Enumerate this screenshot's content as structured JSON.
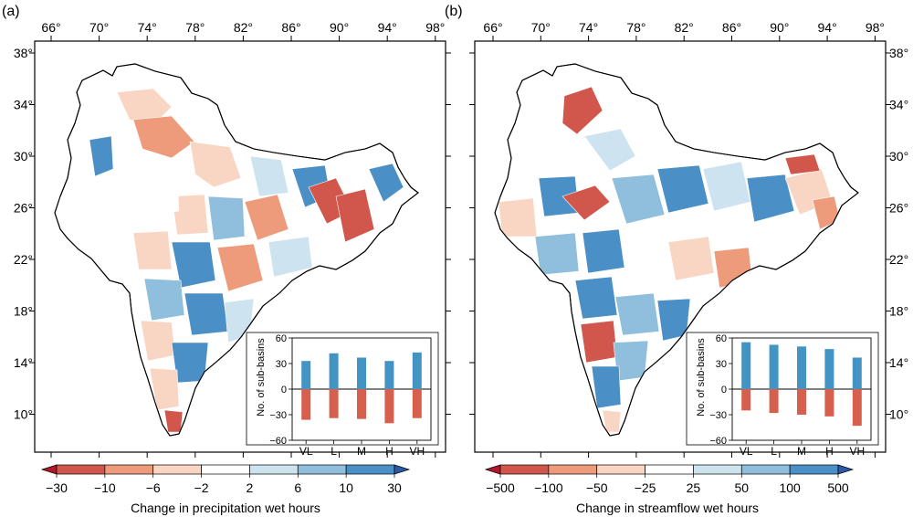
{
  "panels": [
    {
      "label": "(a)",
      "lon_ticks": [
        "66°",
        "70°",
        "74°",
        "78°",
        "82°",
        "86°",
        "90°",
        "94°",
        "98°"
      ],
      "lat_ticks": [
        "38°",
        "34°",
        "30°",
        "26°",
        "22°",
        "18°",
        "14°",
        "10°"
      ],
      "lat_side": "left",
      "colorbar": {
        "title": "Change in precipitation wet hours",
        "labels": [
          "−30",
          "−10",
          "−6",
          "−2",
          "2",
          "6",
          "10",
          "30"
        ],
        "colors": [
          "#d1564b",
          "#ee9b7b",
          "#f9d5c4",
          "#ffffff",
          "#cde3ef",
          "#8fbfdd",
          "#4a90c7"
        ],
        "extend_low": "#b2182b",
        "extend_high": "#2d5aa6"
      },
      "inset": {
        "ylabel": "No. of sub-basins",
        "yticks": [
          "60",
          "30",
          "0",
          "−30",
          "−60"
        ],
        "categories": [
          "VL",
          "L",
          "M",
          "H",
          "VH"
        ],
        "positive": [
          33,
          42,
          37,
          33,
          43
        ],
        "negative": [
          -36,
          -34,
          -35,
          -40,
          -34
        ],
        "pos_color": "#4393c3",
        "neg_color": "#d6604d"
      }
    },
    {
      "label": "(b)",
      "lon_ticks": [
        "66°",
        "70°",
        "74°",
        "78°",
        "82°",
        "86°",
        "90°",
        "94°",
        "98°"
      ],
      "lat_ticks": [
        "38°",
        "34°",
        "30°",
        "26°",
        "22°",
        "18°",
        "14°",
        "10°"
      ],
      "lat_side": "right",
      "colorbar": {
        "title": "Change in streamflow wet hours",
        "labels": [
          "−500",
          "−100",
          "−50",
          "−25",
          "25",
          "50",
          "100",
          "500"
        ],
        "colors": [
          "#d1564b",
          "#ee9b7b",
          "#f9d5c4",
          "#ffffff",
          "#cde3ef",
          "#8fbfdd",
          "#4a90c7"
        ],
        "extend_low": "#b2182b",
        "extend_high": "#2d5aa6"
      },
      "inset": {
        "ylabel": "No. of sub-basins",
        "yticks": [
          "60",
          "30",
          "0",
          "−30",
          "−60"
        ],
        "categories": [
          "VL",
          "L",
          "M",
          "H",
          "VH"
        ],
        "positive": [
          55,
          52,
          50,
          47,
          37
        ],
        "negative": [
          -25,
          -28,
          -30,
          -32,
          -43
        ],
        "pos_color": "#4393c3",
        "neg_color": "#d6604d"
      }
    }
  ]
}
